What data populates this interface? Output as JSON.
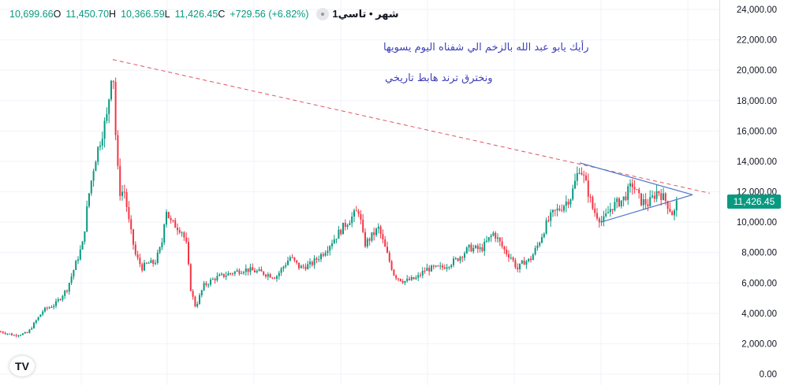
{
  "legend": {
    "symbol_line": "1شهر • تاسي",
    "open_label": "O",
    "open_value": "10,699.66",
    "high_label": "H",
    "high_value": "11,450.70",
    "low_label": "L",
    "low_value": "10,366.59",
    "close_label": "C",
    "close_value": "11,426.45",
    "change": "+729.56 (+6.82%)"
  },
  "annotations": {
    "line1": "رأيك يابو عبد الله بالزخم الي شفناه اليوم يسويها",
    "line2": "ونخترق ترند هابط تاريخي"
  },
  "last_price_label": "11,426.45",
  "logo_text": "TV",
  "colors": {
    "up": "#089981",
    "down": "#f23645",
    "trendline_red": "#e05560",
    "triangle_blue": "#4a74c9",
    "annotation_text": "#3d3fb8"
  },
  "chart_data": {
    "type": "candlestick",
    "interval": "1M",
    "y_axis_side": "right",
    "ylim": [
      0,
      24000
    ],
    "y_ticks": [
      "24,000.00",
      "22,000.00",
      "20,000.00",
      "18,000.00",
      "16,000.00",
      "14,000.00",
      "12,000.00",
      "10,000.00",
      "8,000.00",
      "6,000.00",
      "4,000.00",
      "2,000.00",
      "0.00"
    ],
    "y_tick_values": [
      24000,
      22000,
      20000,
      18000,
      16000,
      14000,
      12000,
      10000,
      8000,
      6000,
      4000,
      2000,
      0
    ],
    "grid": true,
    "last_close": 11426.45,
    "anchors": [
      [
        0,
        2800
      ],
      [
        18,
        2550
      ],
      [
        35,
        2700
      ],
      [
        55,
        4200
      ],
      [
        70,
        4600
      ],
      [
        85,
        5600
      ],
      [
        105,
        8600
      ],
      [
        112,
        11600
      ],
      [
        120,
        14000
      ],
      [
        130,
        16000
      ],
      [
        136,
        17000
      ],
      [
        141,
        19800
      ],
      [
        143,
        20600
      ],
      [
        146,
        16300
      ],
      [
        151,
        12000
      ],
      [
        158,
        12000
      ],
      [
        164,
        9800
      ],
      [
        172,
        7800
      ],
      [
        180,
        7000
      ],
      [
        188,
        7300
      ],
      [
        196,
        7300
      ],
      [
        205,
        8500
      ],
      [
        210,
        11000
      ],
      [
        216,
        10000
      ],
      [
        222,
        9800
      ],
      [
        230,
        9500
      ],
      [
        236,
        8600
      ],
      [
        242,
        5500
      ],
      [
        248,
        4400
      ],
      [
        258,
        5800
      ],
      [
        272,
        6300
      ],
      [
        290,
        6600
      ],
      [
        310,
        6900
      ],
      [
        330,
        6700
      ],
      [
        350,
        6400
      ],
      [
        368,
        7700
      ],
      [
        380,
        7000
      ],
      [
        394,
        7200
      ],
      [
        410,
        8000
      ],
      [
        425,
        9000
      ],
      [
        440,
        10000
      ],
      [
        455,
        10800
      ],
      [
        462,
        8500
      ],
      [
        470,
        9000
      ],
      [
        480,
        9600
      ],
      [
        490,
        8000
      ],
      [
        500,
        6500
      ],
      [
        512,
        6100
      ],
      [
        528,
        6300
      ],
      [
        540,
        6900
      ],
      [
        560,
        7000
      ],
      [
        578,
        7500
      ],
      [
        595,
        8300
      ],
      [
        610,
        8200
      ],
      [
        626,
        9300
      ],
      [
        640,
        8100
      ],
      [
        648,
        7700
      ],
      [
        656,
        6900
      ],
      [
        664,
        7400
      ],
      [
        672,
        7500
      ],
      [
        682,
        8500
      ],
      [
        692,
        9800
      ],
      [
        700,
        10500
      ],
      [
        712,
        11000
      ],
      [
        724,
        11700
      ],
      [
        735,
        13700
      ],
      [
        744,
        12300
      ],
      [
        752,
        10800
      ],
      [
        764,
        10000
      ],
      [
        775,
        11000
      ],
      [
        790,
        11500
      ],
      [
        802,
        12500
      ],
      [
        812,
        11400
      ],
      [
        822,
        11200
      ],
      [
        834,
        12100
      ],
      [
        844,
        11400
      ],
      [
        854,
        10400
      ],
      [
        858,
        11426
      ]
    ],
    "trendline_red": {
      "from": [
        143,
        20700
      ],
      "to": [
        900,
        11900
      ],
      "style": "dashed"
    },
    "triangle_blue": {
      "upper": [
        [
          735,
          13900
        ],
        [
          878,
          11800
        ]
      ],
      "lower": [
        [
          762,
          10000
        ],
        [
          878,
          11800
        ]
      ]
    }
  }
}
